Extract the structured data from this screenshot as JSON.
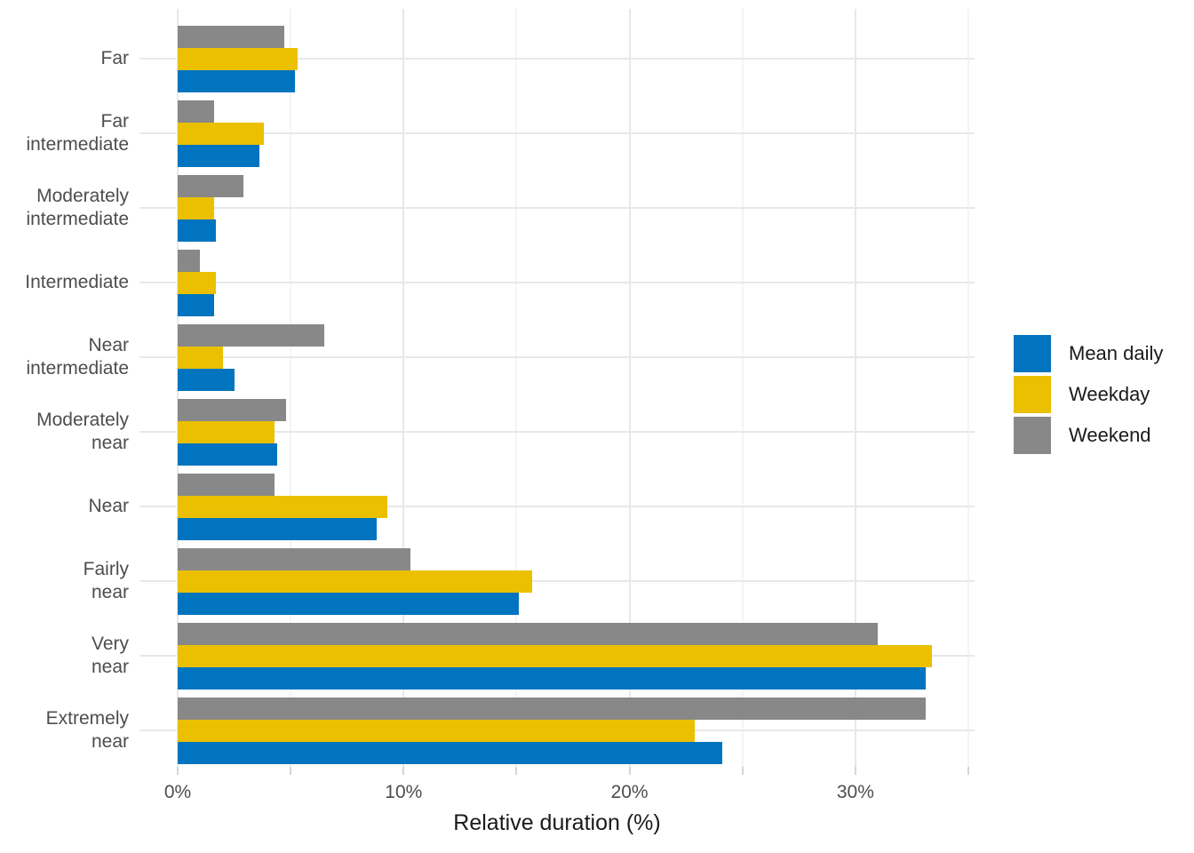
{
  "chart_data": {
    "type": "bar",
    "orientation": "horizontal",
    "title": "",
    "xlabel": "Relative duration (%)",
    "ylabel": "",
    "categories": [
      "Far",
      "Far\nintermediate",
      "Moderately\nintermediate",
      "Intermediate",
      "Near\nintermediate",
      "Moderately\nnear",
      "Near",
      "Fairly\nnear",
      "Very\nnear",
      "Extremely\nnear"
    ],
    "series": [
      {
        "name": "Mean daily",
        "color": "#0074be",
        "values": [
          5.2,
          3.6,
          1.7,
          1.6,
          2.5,
          4.4,
          8.8,
          15.1,
          33.1,
          24.1
        ]
      },
      {
        "name": "Weekday",
        "color": "#ebc000",
        "values": [
          5.3,
          3.8,
          1.6,
          1.7,
          2.0,
          4.3,
          9.3,
          15.7,
          33.4,
          22.9
        ]
      },
      {
        "name": "Weekend",
        "color": "#888888",
        "values": [
          4.7,
          1.6,
          2.9,
          1.0,
          6.5,
          4.8,
          4.3,
          10.3,
          31.0,
          33.1
        ]
      }
    ],
    "bar_order_top_to_bottom": [
      "Weekend",
      "Weekday",
      "Mean daily"
    ],
    "x_axis": {
      "tick_labels": [
        "0%",
        "10%",
        "20%",
        "30%"
      ],
      "label_tick_values": [
        0,
        10,
        20,
        30
      ],
      "minor_tick_step": 5,
      "tick_max": 35,
      "xlim": [
        0,
        35.3
      ],
      "grid": true
    },
    "legend": {
      "position": "right"
    }
  },
  "colors": {
    "background": "#ffffff",
    "grid_major": "#e8e8e8",
    "grid_minor": "#f4f4f4",
    "axis_tick": "#d5d5d5",
    "axis_text": "#4d4d4d",
    "title_text": "#1a1a1a"
  }
}
